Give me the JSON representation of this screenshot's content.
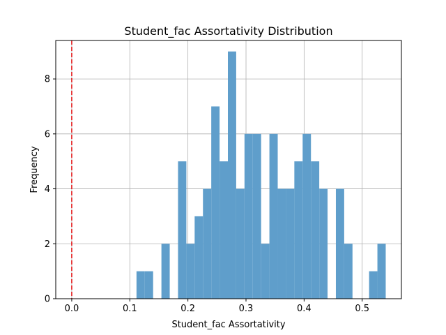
{
  "chart_data": {
    "type": "bar",
    "title": "Student_fac Assortativity Distribution",
    "xlabel": "Student_fac Assortativity",
    "ylabel": "Frequency",
    "xlim": [
      -0.0275,
      0.5675
    ],
    "ylim": [
      0,
      9.4
    ],
    "xticks": [
      0.0,
      0.1,
      0.2,
      0.3,
      0.4,
      0.5
    ],
    "xtick_labels": [
      "0.0",
      "0.1",
      "0.2",
      "0.3",
      "0.4",
      "0.5"
    ],
    "yticks": [
      0,
      2,
      4,
      6,
      8
    ],
    "ytick_labels": [
      "0",
      "2",
      "4",
      "6",
      "8"
    ],
    "grid": true,
    "bar_color": "#5f9ecb",
    "reference_line": {
      "x": 0.0,
      "color": "#e41a1c",
      "style": "dashed"
    },
    "bins": [
      {
        "start": 0.1115,
        "end": 0.1258,
        "count": 1
      },
      {
        "start": 0.1258,
        "end": 0.1401,
        "count": 1
      },
      {
        "start": 0.1544,
        "end": 0.1687,
        "count": 2
      },
      {
        "start": 0.183,
        "end": 0.1973,
        "count": 5
      },
      {
        "start": 0.1973,
        "end": 0.2116,
        "count": 2
      },
      {
        "start": 0.2116,
        "end": 0.2259,
        "count": 3
      },
      {
        "start": 0.2259,
        "end": 0.2402,
        "count": 4
      },
      {
        "start": 0.2402,
        "end": 0.2545,
        "count": 7
      },
      {
        "start": 0.2545,
        "end": 0.2688,
        "count": 5
      },
      {
        "start": 0.2688,
        "end": 0.2831,
        "count": 9
      },
      {
        "start": 0.2831,
        "end": 0.2974,
        "count": 4
      },
      {
        "start": 0.2974,
        "end": 0.3117,
        "count": 6
      },
      {
        "start": 0.3117,
        "end": 0.326,
        "count": 6
      },
      {
        "start": 0.326,
        "end": 0.3403,
        "count": 2
      },
      {
        "start": 0.3403,
        "end": 0.3546,
        "count": 6
      },
      {
        "start": 0.3546,
        "end": 0.3689,
        "count": 4
      },
      {
        "start": 0.3689,
        "end": 0.3832,
        "count": 4
      },
      {
        "start": 0.3832,
        "end": 0.3975,
        "count": 5
      },
      {
        "start": 0.3975,
        "end": 0.4118,
        "count": 6
      },
      {
        "start": 0.4118,
        "end": 0.4261,
        "count": 5
      },
      {
        "start": 0.4261,
        "end": 0.4404,
        "count": 4
      },
      {
        "start": 0.4547,
        "end": 0.469,
        "count": 4
      },
      {
        "start": 0.469,
        "end": 0.4833,
        "count": 2
      },
      {
        "start": 0.5119,
        "end": 0.5262,
        "count": 1
      },
      {
        "start": 0.5262,
        "end": 0.5405,
        "count": 2
      }
    ]
  }
}
